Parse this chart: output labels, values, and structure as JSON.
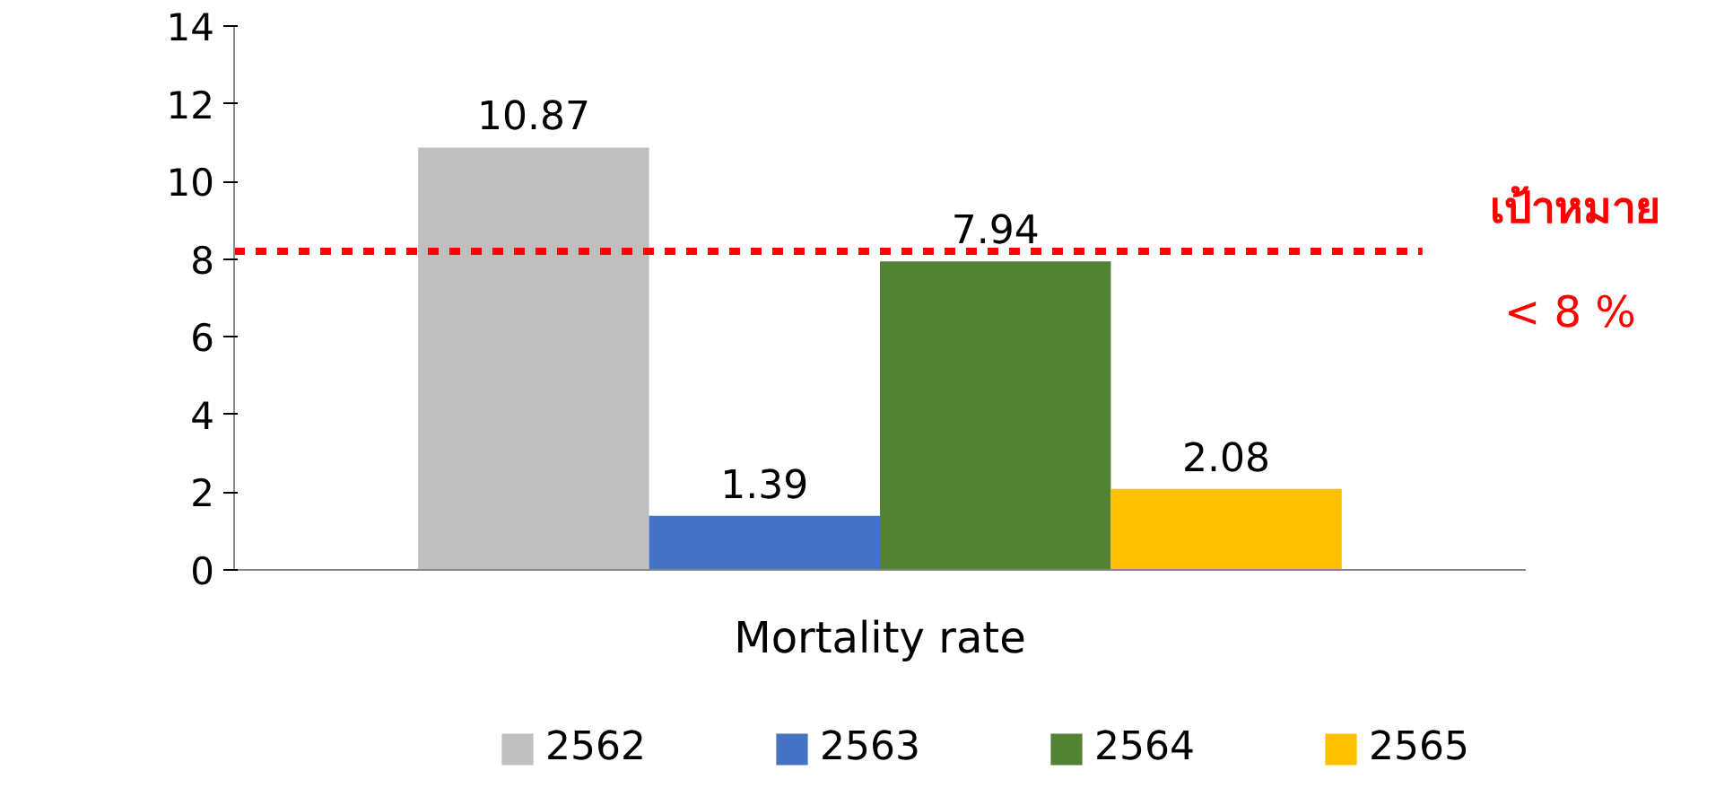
{
  "chart_data": {
    "type": "bar",
    "categories": [
      "Mortality rate"
    ],
    "series": [
      {
        "name": "2562",
        "color": "#bfbfbf",
        "values": [
          10.87
        ]
      },
      {
        "name": "2563",
        "color": "#4472c4",
        "values": [
          1.39
        ]
      },
      {
        "name": "2564",
        "color": "#548235",
        "values": [
          7.94
        ]
      },
      {
        "name": "2565",
        "color": "#ffc000",
        "values": [
          2.08
        ]
      }
    ],
    "ylim": [
      0,
      14
    ],
    "yticks": [
      0,
      2,
      4,
      6,
      8,
      10,
      12,
      14
    ],
    "grid": false,
    "legend": "bottom",
    "data_labels": true,
    "ref_lines": [
      {
        "axis": "y",
        "value": 8.2,
        "label": "เป้าหมาย",
        "color": "#ff0000",
        "line_style": "dashed"
      }
    ],
    "annotations": [
      "< 8 %"
    ]
  }
}
